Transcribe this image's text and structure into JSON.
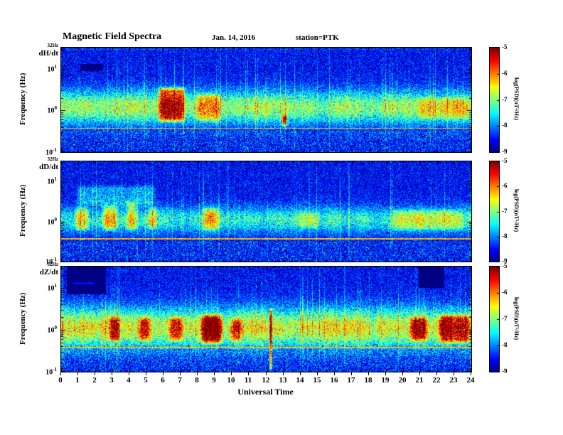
{
  "chart_data": {
    "type": "heatmap",
    "title": "Magnetic Field Spectra",
    "date": "Jan. 14, 2016",
    "station_label": "station=PTK",
    "x": {
      "label": "Universal Time",
      "min": 0,
      "max": 24,
      "ticks": [
        0,
        1,
        2,
        3,
        4,
        5,
        6,
        7,
        8,
        9,
        10,
        11,
        12,
        13,
        14,
        15,
        16,
        17,
        18,
        19,
        20,
        21,
        22,
        23,
        24
      ]
    },
    "y": {
      "label": "Frequency  (Hz)",
      "scale": "log",
      "min_hz": 0.1,
      "max_hz": 32,
      "top_label": "32Hz",
      "ticks": [
        {
          "logf": 1,
          "base": "10",
          "exp": "1"
        },
        {
          "logf": 0,
          "base": "10",
          "exp": "0"
        },
        {
          "logf": -1,
          "base": "10",
          "exp": "-1"
        }
      ]
    },
    "colorbar": {
      "label": "log(PSD)(nT²/Hz)",
      "min": -9,
      "max": -5,
      "ticks": [
        -5,
        -6,
        -7,
        -8,
        -9
      ]
    },
    "narrowband_line_hz": 0.38,
    "panels": [
      {
        "name": "dH/dt",
        "summary": "Persistent emission band near 1 Hz (~-7 log PSD); strong yellow enhancement 5.6-7.3 UT; secondary enhancement 7.8-9.4 UT; narrow orange monochromatic line at ~0.38 Hz all day; dark data-gap patch 1.1-2.4 UT near 10 Hz.",
        "band": {
          "center_logf": 0.08,
          "sigma": 0.4,
          "amp": 1.7
        },
        "features": [
          {
            "t0": 5.6,
            "t1": 7.3,
            "f0": -0.3,
            "f1": 0.6,
            "amp": 2.2
          },
          {
            "t0": 7.8,
            "t1": 9.4,
            "f0": -0.3,
            "f1": 0.45,
            "amp": 1.0
          },
          {
            "t0": 12.9,
            "t1": 13.2,
            "f0": -0.4,
            "f1": -0.05,
            "amp": 2.4
          },
          {
            "t0": 20.8,
            "t1": 24.0,
            "f0": -0.25,
            "f1": 0.35,
            "amp": 0.7
          },
          {
            "t0": 0.0,
            "t1": 24.0,
            "f0": 1.44,
            "f1": 1.51,
            "amp": 1.0
          }
        ],
        "dark": [
          {
            "t0": 1.1,
            "t1": 2.4,
            "f0": 0.95,
            "f1": 1.12
          }
        ]
      },
      {
        "name": "dD/dt",
        "summary": "Weaker patchy 1 Hz band; green blobs 0.7-1.7, 2.3-3.4, 3.7-4.5 and 8.2-9.3 UT with cyan plumes rising to ~8 Hz between 1-5.5 UT; moderate band 19-23.5 UT; orange line at ~0.38 Hz all day.",
        "band": {
          "center_logf": 0.05,
          "sigma": 0.33,
          "amp": 1.15
        },
        "features": [
          {
            "t0": 0.7,
            "t1": 1.7,
            "f0": -0.25,
            "f1": 0.4,
            "amp": 1.3
          },
          {
            "t0": 2.3,
            "t1": 3.4,
            "f0": -0.25,
            "f1": 0.45,
            "amp": 1.4
          },
          {
            "t0": 3.7,
            "t1": 4.5,
            "f0": -0.25,
            "f1": 0.55,
            "amp": 1.3
          },
          {
            "t0": 0.8,
            "t1": 5.6,
            "f0": 0.35,
            "f1": 0.95,
            "amp": 0.7
          },
          {
            "t0": 5.1,
            "t1": 5.6,
            "f0": -0.2,
            "f1": 0.4,
            "amp": 1.0
          },
          {
            "t0": 8.2,
            "t1": 9.3,
            "f0": -0.25,
            "f1": 0.4,
            "amp": 1.2
          },
          {
            "t0": 13.8,
            "t1": 15.2,
            "f0": -0.2,
            "f1": 0.3,
            "amp": 0.6
          },
          {
            "t0": 19.3,
            "t1": 23.6,
            "f0": -0.25,
            "f1": 0.35,
            "amp": 0.8
          }
        ],
        "dark": []
      },
      {
        "name": "dZ/dt",
        "summary": "Strongest band near 1 Hz with orange/red cores at 2.7-3.5, 4.4-5.3, 6.2-7.2, 8.1-9.5 (max), 9.8-10.7, 20.3-21.5 and 22-24 UT; bright vertical spike at ~12.2 UT; orange line at ~0.38 Hz; dark data-gap patches above ~7 Hz at 0.3-2.6 UT (with cyan streak) and 20.9-22.4 UT.",
        "band": {
          "center_logf": 0.05,
          "sigma": 0.47,
          "amp": 1.9
        },
        "features": [
          {
            "t0": 2.7,
            "t1": 3.5,
            "f0": -0.3,
            "f1": 0.35,
            "amp": 1.7
          },
          {
            "t0": 4.4,
            "t1": 5.3,
            "f0": -0.3,
            "f1": 0.35,
            "amp": 1.6
          },
          {
            "t0": 6.2,
            "t1": 7.2,
            "f0": -0.3,
            "f1": 0.35,
            "amp": 1.6
          },
          {
            "t0": 8.1,
            "t1": 9.5,
            "f0": -0.35,
            "f1": 0.4,
            "amp": 2.5
          },
          {
            "t0": 9.8,
            "t1": 10.7,
            "f0": -0.3,
            "f1": 0.3,
            "amp": 1.4
          },
          {
            "t0": 12.15,
            "t1": 12.35,
            "f0": -1.0,
            "f1": 0.55,
            "amp": 2.2
          },
          {
            "t0": 20.3,
            "t1": 21.5,
            "f0": -0.3,
            "f1": 0.35,
            "amp": 1.7
          },
          {
            "t0": 22.0,
            "t1": 24.0,
            "f0": -0.35,
            "f1": 0.4,
            "amp": 1.9
          },
          {
            "t0": 0.5,
            "t1": 2.1,
            "f0": 1.07,
            "f1": 1.16,
            "amp": 2.0
          }
        ],
        "dark": [
          {
            "t0": 0.3,
            "t1": 2.6,
            "f0": 0.85,
            "f1": 1.51
          },
          {
            "t0": 20.9,
            "t1": 22.4,
            "f0": 1.0,
            "f1": 1.51
          }
        ]
      }
    ]
  }
}
